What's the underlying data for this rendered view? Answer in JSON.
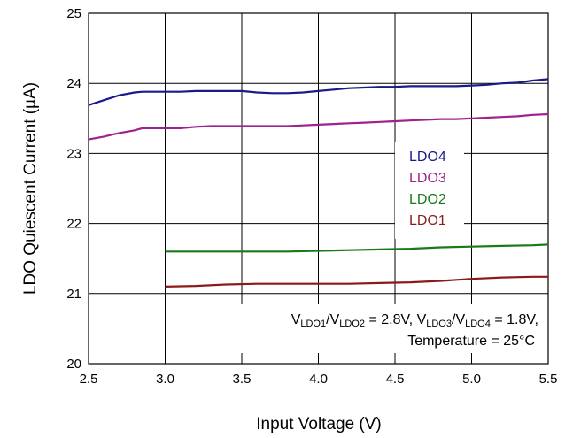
{
  "chart_data": {
    "type": "line",
    "xlabel": "Input Voltage (V)",
    "ylabel": "LDO Quiescent Current (µA)",
    "xlim": [
      2.5,
      5.5
    ],
    "ylim": [
      20,
      25
    ],
    "x_ticks": [
      "2.5",
      "3.0",
      "3.5",
      "4.0",
      "4.5",
      "5.0",
      "5.5"
    ],
    "y_ticks": [
      "20",
      "21",
      "22",
      "23",
      "24",
      "25"
    ],
    "grid": true,
    "legend_placement": "center-right",
    "series": [
      {
        "name": "LDO4",
        "color": "#1a1a8c",
        "x": [
          2.5,
          2.6,
          2.7,
          2.8,
          2.85,
          3.0,
          3.1,
          3.2,
          3.3,
          3.4,
          3.5,
          3.6,
          3.7,
          3.8,
          3.9,
          4.0,
          4.1,
          4.2,
          4.3,
          4.4,
          4.5,
          4.6,
          4.7,
          4.8,
          4.9,
          5.0,
          5.1,
          5.2,
          5.3,
          5.4,
          5.5
        ],
        "y": [
          23.69,
          23.76,
          23.83,
          23.87,
          23.88,
          23.88,
          23.88,
          23.89,
          23.89,
          23.89,
          23.89,
          23.87,
          23.86,
          23.86,
          23.87,
          23.89,
          23.91,
          23.93,
          23.94,
          23.95,
          23.95,
          23.96,
          23.96,
          23.96,
          23.96,
          23.97,
          23.98,
          24.0,
          24.01,
          24.04,
          24.06
        ]
      },
      {
        "name": "LDO3",
        "color": "#a0208e",
        "x": [
          2.5,
          2.6,
          2.7,
          2.8,
          2.85,
          3.0,
          3.1,
          3.2,
          3.3,
          3.4,
          3.5,
          3.6,
          3.7,
          3.8,
          3.9,
          4.0,
          4.1,
          4.2,
          4.3,
          4.4,
          4.5,
          4.6,
          4.7,
          4.8,
          4.9,
          5.0,
          5.1,
          5.2,
          5.3,
          5.4,
          5.5
        ],
        "y": [
          23.2,
          23.24,
          23.29,
          23.33,
          23.36,
          23.36,
          23.36,
          23.38,
          23.39,
          23.39,
          23.39,
          23.39,
          23.39,
          23.39,
          23.4,
          23.41,
          23.42,
          23.43,
          23.44,
          23.45,
          23.46,
          23.47,
          23.48,
          23.49,
          23.49,
          23.5,
          23.51,
          23.52,
          23.53,
          23.55,
          23.56
        ]
      },
      {
        "name": "LDO2",
        "color": "#1a7a1a",
        "x": [
          3.0,
          3.2,
          3.4,
          3.6,
          3.8,
          4.0,
          4.2,
          4.4,
          4.6,
          4.8,
          5.0,
          5.2,
          5.4,
          5.5
        ],
        "y": [
          21.6,
          21.6,
          21.6,
          21.6,
          21.6,
          21.61,
          21.62,
          21.63,
          21.64,
          21.66,
          21.67,
          21.68,
          21.69,
          21.7
        ]
      },
      {
        "name": "LDO1",
        "color": "#8c1a1a",
        "x": [
          3.0,
          3.2,
          3.4,
          3.6,
          3.8,
          4.0,
          4.2,
          4.4,
          4.6,
          4.8,
          5.0,
          5.2,
          5.4,
          5.5
        ],
        "y": [
          21.1,
          21.11,
          21.13,
          21.14,
          21.14,
          21.14,
          21.14,
          21.15,
          21.16,
          21.18,
          21.21,
          21.23,
          21.24,
          21.24
        ]
      }
    ],
    "annotation": {
      "line1": {
        "v1": "V",
        "s1": "LDO1",
        "sep1": "/",
        "v2": "V",
        "s2": "LDO2",
        "eq1": " = 2.8V, ",
        "v3": "V",
        "s3": "LDO3",
        "sep2": "/",
        "v4": "V",
        "s4": "LDO4",
        "eq2": " = 1.8V,"
      },
      "line2": "Temperature = 25°C"
    }
  }
}
